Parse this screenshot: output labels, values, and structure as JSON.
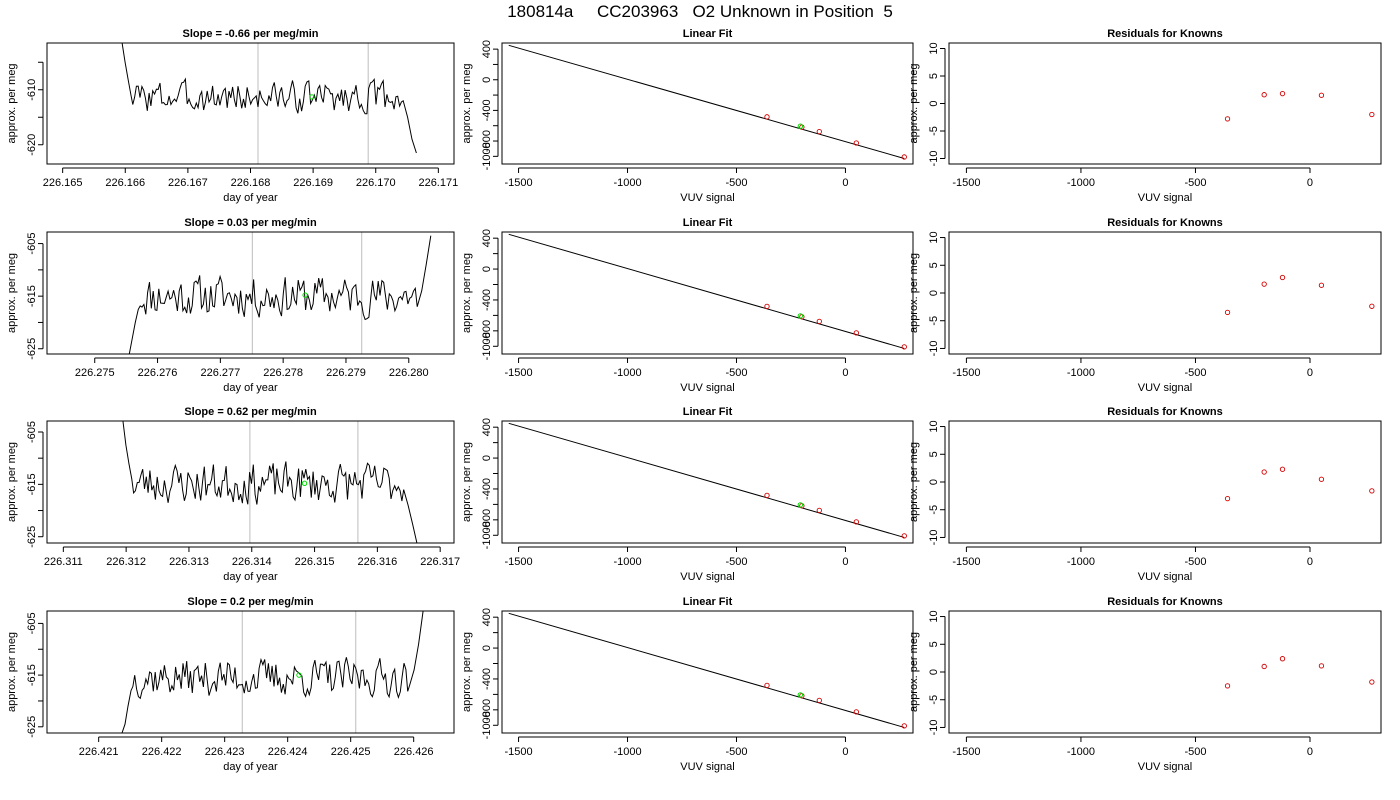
{
  "page_title": "180814a     CC203963   O2 Unknown in Position  5",
  "colors": {
    "trace": "#000000",
    "vline": "#c8c8c8",
    "unknown": "#00e000",
    "known": "#d40000",
    "axis": "#000000"
  },
  "chart_data": [
    {
      "type": "line",
      "id": "trace-1",
      "title": "Slope =  -0.66  per meg/min",
      "xlabel": "day of year",
      "ylabel": "approx. per meg",
      "xlim": [
        226.16475,
        226.17125
      ],
      "ylim": [
        -623.5,
        -601.5
      ],
      "xticks": [
        226.165,
        226.166,
        226.167,
        226.168,
        226.169,
        226.17,
        226.171
      ],
      "xticklabels": [
        "226.165",
        "226.166",
        "226.167",
        "226.168",
        "226.169",
        "226.170",
        "226.171"
      ],
      "yticks": [
        -605,
        -610,
        -615,
        -620
      ],
      "yticklabels": [
        "",
        "-610",
        "",
        "-620"
      ],
      "trace_start": 226.16595,
      "trace_end": 226.17065,
      "trace_head": [
        -601.5,
        -605,
        -608,
        -611
      ],
      "trace_tail": [
        -612,
        -615,
        -619,
        -621.5
      ],
      "noise_center": -611.3,
      "noise_amp": 2.2,
      "seed": 3,
      "vlines": [
        226.16812,
        226.16988
      ],
      "unknown_point": {
        "x": 226.16898,
        "y": -611.3
      }
    },
    {
      "type": "line",
      "id": "trace-2",
      "title": "Slope =  0.03  per meg/min",
      "xlabel": "day of year",
      "ylabel": "approx. per meg",
      "xlim": [
        226.27424,
        226.28072
      ],
      "ylim": [
        -626.0,
        -602.8
      ],
      "xticks": [
        226.275,
        226.276,
        226.277,
        226.278,
        226.279,
        226.28
      ],
      "xticklabels": [
        "226.275",
        "226.276",
        "226.277",
        "226.278",
        "226.279",
        "226.280"
      ],
      "yticks": [
        -605,
        -610,
        -615,
        -620,
        -625
      ],
      "yticklabels": [
        "-605",
        "",
        "-615",
        "",
        "-625"
      ],
      "trace_start": 226.27555,
      "trace_end": 226.28035,
      "trace_head": [
        -626,
        -623,
        -620,
        -617.5
      ],
      "trace_tail": [
        -617,
        -614,
        -609,
        -603.5
      ],
      "noise_center": -615.0,
      "noise_amp": 3.0,
      "seed": 11,
      "vlines": [
        226.27751,
        226.27925
      ],
      "unknown_point": {
        "x": 226.27835,
        "y": -614.8
      }
    },
    {
      "type": "line",
      "id": "trace-3",
      "title": "Slope =  0.62  per meg/min",
      "xlabel": "day of year",
      "ylabel": "approx. per meg",
      "xlim": [
        226.31074,
        226.31722
      ],
      "ylim": [
        -626.2,
        -602.9
      ],
      "xticks": [
        226.311,
        226.312,
        226.313,
        226.314,
        226.315,
        226.316,
        226.317
      ],
      "xticklabels": [
        "226.311",
        "226.312",
        "226.313",
        "226.314",
        "226.315",
        "226.316",
        "226.317"
      ],
      "yticks": [
        -605,
        -610,
        -615,
        -620,
        -625
      ],
      "yticklabels": [
        "-605",
        "",
        "-615",
        "",
        "-625"
      ],
      "trace_start": 226.31195,
      "trace_end": 226.31663,
      "trace_head": [
        -603,
        -607.5,
        -611,
        -614
      ],
      "trace_tail": [
        -616,
        -619,
        -622.5,
        -626.2
      ],
      "noise_center": -614.8,
      "noise_amp": 3.0,
      "seed": 23,
      "vlines": [
        226.31397,
        226.31569
      ],
      "unknown_point": {
        "x": 226.31484,
        "y": -614.8
      }
    },
    {
      "type": "line",
      "id": "trace-4",
      "title": "Slope =  0.2  per meg/min",
      "xlabel": "day of year",
      "ylabel": "approx. per meg",
      "xlim": [
        226.42018,
        226.42664
      ],
      "ylim": [
        -626.2,
        -602.6
      ],
      "xticks": [
        226.421,
        226.422,
        226.423,
        226.424,
        226.425,
        226.426
      ],
      "xticklabels": [
        "226.421",
        "226.422",
        "226.423",
        "226.424",
        "226.425",
        "226.426"
      ],
      "yticks": [
        -605,
        -610,
        -615,
        -620,
        -625
      ],
      "yticklabels": [
        "-605",
        "",
        "-615",
        "",
        "-625"
      ],
      "trace_start": 226.42137,
      "trace_end": 226.42615,
      "trace_head": [
        -626.2,
        -624.5,
        -621,
        -618
      ],
      "trace_tail": [
        -617,
        -614,
        -609,
        -602.6
      ],
      "noise_center": -615.5,
      "noise_amp": 2.8,
      "seed": 37,
      "vlines": [
        226.42328,
        226.42508
      ],
      "unknown_point": {
        "x": 226.42418,
        "y": -615.0
      }
    },
    {
      "type": "scatter",
      "id": "fit-1",
      "title": "Linear Fit",
      "xlabel": "VUV signal",
      "ylabel": "approx. per meg",
      "xlim": [
        -1576,
        310
      ],
      "ylim": [
        -1100,
        480
      ],
      "xticks": [
        -1500,
        -1000,
        -500,
        0
      ],
      "xticklabels": [
        "-1500",
        "-1000",
        "-500",
        "0"
      ],
      "yticks": [
        400,
        200,
        0,
        -200,
        -400,
        -600,
        -800,
        -1000
      ],
      "yticklabels": [
        "400",
        "",
        "0",
        "",
        "-400",
        "",
        "-800",
        "-1000"
      ],
      "fit_line": {
        "x0": -1545,
        "y0": 450,
        "x1": 270,
        "y1": -1028
      },
      "knowns": [
        {
          "x": -360,
          "y": -484
        },
        {
          "x": -200,
          "y": -618
        },
        {
          "x": -120,
          "y": -677
        },
        {
          "x": 50,
          "y": -826
        },
        {
          "x": 270,
          "y": -1008
        }
      ],
      "unknown_point": {
        "x": -207,
        "y": -607
      }
    },
    {
      "type": "scatter",
      "id": "fit-2",
      "title": "Linear Fit",
      "xlabel": "VUV signal",
      "ylabel": "approx. per meg",
      "xlim": [
        -1576,
        310
      ],
      "ylim": [
        -1100,
        480
      ],
      "xticks": [
        -1500,
        -1000,
        -500,
        0
      ],
      "xticklabels": [
        "-1500",
        "-1000",
        "-500",
        "0"
      ],
      "yticks": [
        400,
        200,
        0,
        -200,
        -400,
        -600,
        -800,
        -1000
      ],
      "yticklabels": [
        "400",
        "",
        "0",
        "",
        "-400",
        "",
        "-800",
        "-1000"
      ],
      "fit_line": {
        "x0": -1545,
        "y0": 450,
        "x1": 270,
        "y1": -1028
      },
      "knowns": [
        {
          "x": -360,
          "y": -484
        },
        {
          "x": -200,
          "y": -618
        },
        {
          "x": -120,
          "y": -677
        },
        {
          "x": 50,
          "y": -826
        },
        {
          "x": 270,
          "y": -1008
        }
      ],
      "unknown_point": {
        "x": -207,
        "y": -607
      }
    },
    {
      "type": "scatter",
      "id": "fit-3",
      "title": "Linear Fit",
      "xlabel": "VUV signal",
      "ylabel": "approx. per meg",
      "xlim": [
        -1576,
        310
      ],
      "ylim": [
        -1100,
        480
      ],
      "xticks": [
        -1500,
        -1000,
        -500,
        0
      ],
      "xticklabels": [
        "-1500",
        "-1000",
        "-500",
        "0"
      ],
      "yticks": [
        400,
        200,
        0,
        -200,
        -400,
        -600,
        -800,
        -1000
      ],
      "yticklabels": [
        "400",
        "",
        "0",
        "",
        "-400",
        "",
        "-800",
        "-1000"
      ],
      "fit_line": {
        "x0": -1545,
        "y0": 450,
        "x1": 270,
        "y1": -1028
      },
      "knowns": [
        {
          "x": -360,
          "y": -484
        },
        {
          "x": -200,
          "y": -618
        },
        {
          "x": -120,
          "y": -677
        },
        {
          "x": 50,
          "y": -826
        },
        {
          "x": 270,
          "y": -1008
        }
      ],
      "unknown_point": {
        "x": -207,
        "y": -607
      }
    },
    {
      "type": "scatter",
      "id": "fit-4",
      "title": "Linear Fit",
      "xlabel": "VUV signal",
      "ylabel": "approx. per meg",
      "xlim": [
        -1576,
        310
      ],
      "ylim": [
        -1100,
        480
      ],
      "xticks": [
        -1500,
        -1000,
        -500,
        0
      ],
      "xticklabels": [
        "-1500",
        "-1000",
        "-500",
        "0"
      ],
      "yticks": [
        400,
        200,
        0,
        -200,
        -400,
        -600,
        -800,
        -1000
      ],
      "yticklabels": [
        "400",
        "",
        "0",
        "",
        "-400",
        "",
        "-800",
        "-1000"
      ],
      "fit_line": {
        "x0": -1545,
        "y0": 450,
        "x1": 270,
        "y1": -1028
      },
      "knowns": [
        {
          "x": -360,
          "y": -484
        },
        {
          "x": -200,
          "y": -618
        },
        {
          "x": -120,
          "y": -677
        },
        {
          "x": 50,
          "y": -826
        },
        {
          "x": 270,
          "y": -1008
        }
      ],
      "unknown_point": {
        "x": -207,
        "y": -607
      }
    },
    {
      "type": "scatter",
      "id": "resid-1",
      "title": "Residuals for Knowns",
      "xlabel": "VUV signal",
      "ylabel": "approx. per meg",
      "xlim": [
        -1576,
        310
      ],
      "ylim": [
        -11,
        11
      ],
      "xticks": [
        -1500,
        -1000,
        -500,
        0
      ],
      "xticklabels": [
        "-1500",
        "-1000",
        "-500",
        "0"
      ],
      "yticks": [
        10,
        5,
        0,
        -5,
        -10
      ],
      "yticklabels": [
        "10",
        "5",
        "0",
        "-5",
        "-10"
      ],
      "points": [
        {
          "x": -360,
          "y": -2.8
        },
        {
          "x": -200,
          "y": 1.6
        },
        {
          "x": -120,
          "y": 1.8
        },
        {
          "x": 50,
          "y": 1.5
        },
        {
          "x": 270,
          "y": -2.0
        }
      ]
    },
    {
      "type": "scatter",
      "id": "resid-2",
      "title": "Residuals for Knowns",
      "xlabel": "VUV signal",
      "ylabel": "approx. per meg",
      "xlim": [
        -1576,
        310
      ],
      "ylim": [
        -11,
        11
      ],
      "xticks": [
        -1500,
        -1000,
        -500,
        0
      ],
      "xticklabels": [
        "-1500",
        "-1000",
        "-500",
        "0"
      ],
      "yticks": [
        10,
        5,
        0,
        -5,
        -10
      ],
      "yticklabels": [
        "10",
        "5",
        "0",
        "-5",
        "-10"
      ],
      "points": [
        {
          "x": -360,
          "y": -3.5
        },
        {
          "x": -200,
          "y": 1.6
        },
        {
          "x": -120,
          "y": 2.8
        },
        {
          "x": 50,
          "y": 1.4
        },
        {
          "x": 270,
          "y": -2.4
        }
      ]
    },
    {
      "type": "scatter",
      "id": "resid-3",
      "title": "Residuals for Knowns",
      "xlabel": "VUV signal",
      "ylabel": "approx. per meg",
      "xlim": [
        -1576,
        310
      ],
      "ylim": [
        -11,
        11
      ],
      "xticks": [
        -1500,
        -1000,
        -500,
        0
      ],
      "xticklabels": [
        "-1500",
        "-1000",
        "-500",
        "0"
      ],
      "yticks": [
        10,
        5,
        0,
        -5,
        -10
      ],
      "yticklabels": [
        "10",
        "5",
        "0",
        "-5",
        "-10"
      ],
      "points": [
        {
          "x": -360,
          "y": -3.0
        },
        {
          "x": -200,
          "y": 1.8
        },
        {
          "x": -120,
          "y": 2.3
        },
        {
          "x": 50,
          "y": 0.5
        },
        {
          "x": 270,
          "y": -1.6
        }
      ]
    },
    {
      "type": "scatter",
      "id": "resid-4",
      "title": "Residuals for Knowns",
      "xlabel": "VUV signal",
      "ylabel": "approx. per meg",
      "xlim": [
        -1576,
        310
      ],
      "ylim": [
        -11,
        11
      ],
      "xticks": [
        -1500,
        -1000,
        -500,
        0
      ],
      "xticklabels": [
        "-1500",
        "-1000",
        "-500",
        "0"
      ],
      "yticks": [
        10,
        5,
        0,
        -5,
        -10
      ],
      "yticklabels": [
        "10",
        "5",
        "0",
        "-5",
        "-10"
      ],
      "points": [
        {
          "x": -360,
          "y": -2.5
        },
        {
          "x": -200,
          "y": 1.0
        },
        {
          "x": -120,
          "y": 2.4
        },
        {
          "x": 50,
          "y": 1.1
        },
        {
          "x": 270,
          "y": -1.8
        }
      ]
    }
  ]
}
